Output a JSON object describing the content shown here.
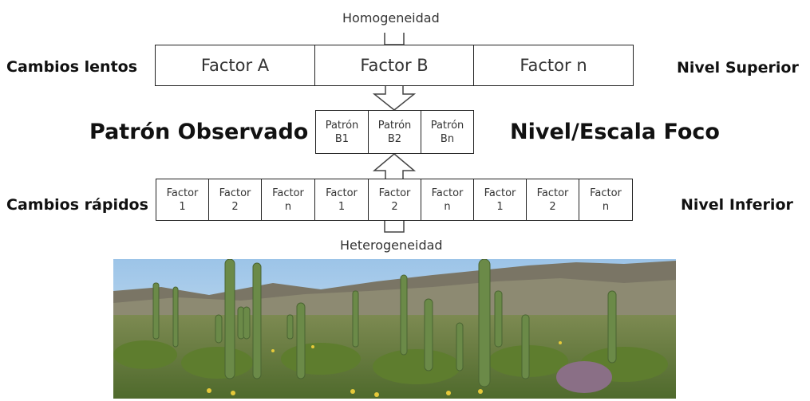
{
  "flow": {
    "top_label": "Homogeneidad",
    "bottom_label": "Heterogeneidad"
  },
  "left_labels": {
    "top": "Cambios lentos",
    "middle": "Patrón Observado",
    "bottom": "Cambios rápidos"
  },
  "right_labels": {
    "top": "Nivel Superior",
    "middle": "Nivel/Escala Foco",
    "bottom": "Nivel Inferior"
  },
  "upper_level": [
    "Factor A",
    "Factor B",
    "Factor n"
  ],
  "focus_level": [
    {
      "line1": "Patrón",
      "line2": "B1"
    },
    {
      "line1": "Patrón",
      "line2": "B2"
    },
    {
      "line1": "Patrón",
      "line2": "Bn"
    }
  ],
  "lower_level": [
    {
      "line1": "Factor",
      "line2": "1"
    },
    {
      "line1": "Factor",
      "line2": "2"
    },
    {
      "line1": "Factor",
      "line2": "n"
    },
    {
      "line1": "Factor",
      "line2": "1"
    },
    {
      "line1": "Factor",
      "line2": "2"
    },
    {
      "line1": "Factor",
      "line2": "n"
    },
    {
      "line1": "Factor",
      "line2": "1"
    },
    {
      "line1": "Factor",
      "line2": "2"
    },
    {
      "line1": "Factor",
      "line2": "n"
    }
  ]
}
